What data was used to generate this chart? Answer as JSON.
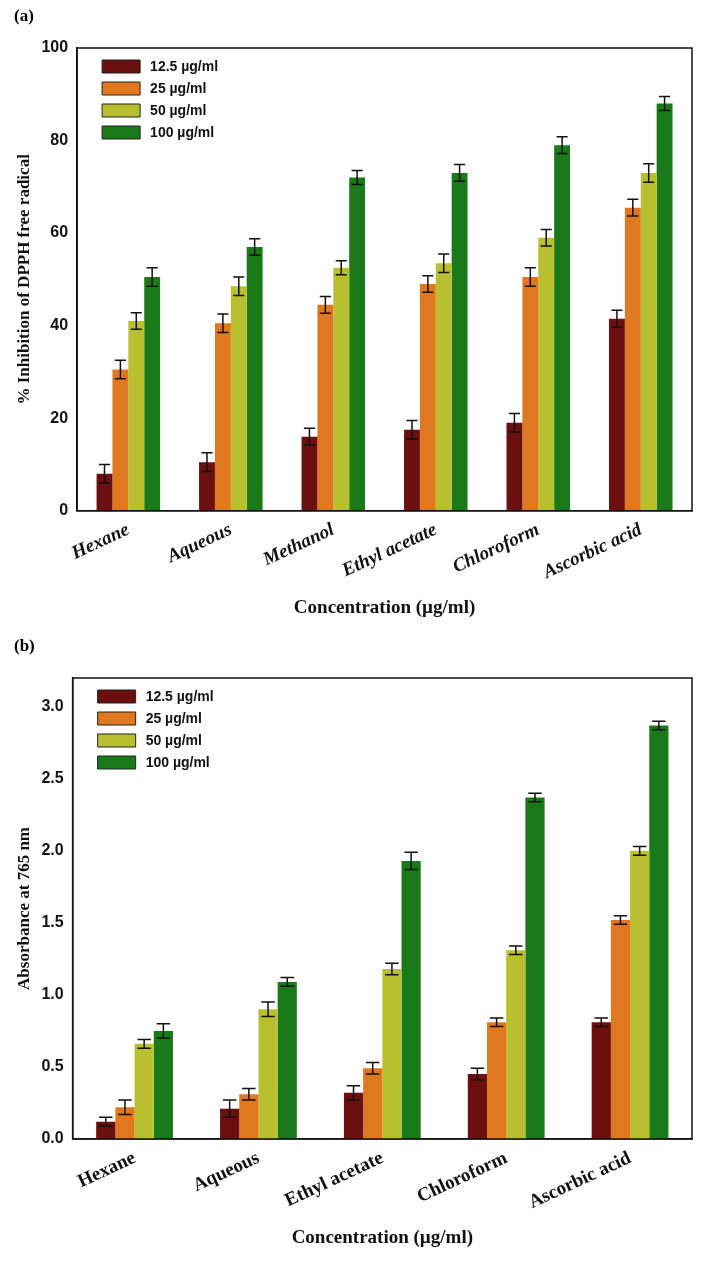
{
  "chart_data": [
    {
      "type": "bar",
      "annotations": [
        "(a)"
      ],
      "xlabel": "Concentration (µg/ml)",
      "ylabel": "% Inhibition of DPPH free radical",
      "categories": [
        "Hexane",
        "Aqueous",
        "Methanol",
        "Ethyl acetate",
        "Chloroform",
        "Ascorbic acid"
      ],
      "series": [
        {
          "name": "12.5 µg/ml",
          "color": "#6b0f0f",
          "values": [
            8,
            10.5,
            16,
            17.5,
            19,
            41.5
          ],
          "errors": [
            2,
            2,
            1.8,
            2,
            2,
            1.8
          ]
        },
        {
          "name": "25 µg/ml",
          "color": "#e07820",
          "values": [
            30.5,
            40.5,
            44.5,
            49,
            50.5,
            65.5
          ],
          "errors": [
            2,
            2,
            1.8,
            1.8,
            2,
            1.8
          ]
        },
        {
          "name": "50 µg/ml",
          "color": "#b8c030",
          "values": [
            41,
            48.5,
            52.5,
            53.5,
            59,
            73
          ],
          "errors": [
            1.8,
            2,
            1.5,
            2,
            1.8,
            2
          ]
        },
        {
          "name": "100 µg/ml",
          "color": "#1a7a1a",
          "values": [
            50.5,
            57,
            72,
            73,
            79,
            88
          ],
          "errors": [
            2,
            1.8,
            1.5,
            1.8,
            1.8,
            1.5
          ]
        }
      ],
      "ylim": [
        0,
        100
      ],
      "yticks": [
        0,
        20,
        40,
        60,
        80,
        100
      ],
      "legend": "top left",
      "grid": false
    },
    {
      "type": "bar",
      "annotations": [
        "(b)"
      ],
      "xlabel": "Concentration (µg/ml)",
      "ylabel": "Absorbance at 765 nm",
      "categories": [
        "Hexane",
        "Aqueous",
        "Ethyl acetate",
        "Chloroform",
        "Ascorbic acid"
      ],
      "series": [
        {
          "name": "12.5 µg/ml",
          "color": "#6b0f0f",
          "values": [
            0.12,
            0.21,
            0.32,
            0.45,
            0.81
          ],
          "errors": [
            0.03,
            0.06,
            0.05,
            0.04,
            0.03
          ]
        },
        {
          "name": "25 µg/ml",
          "color": "#e07820",
          "values": [
            0.22,
            0.31,
            0.49,
            0.81,
            1.52
          ],
          "errors": [
            0.05,
            0.04,
            0.04,
            0.03,
            0.03
          ]
        },
        {
          "name": "50 µg/ml",
          "color": "#b8c030",
          "values": [
            0.66,
            0.9,
            1.18,
            1.31,
            2.0
          ],
          "errors": [
            0.03,
            0.05,
            0.04,
            0.03,
            0.03
          ]
        },
        {
          "name": "100 µg/ml",
          "color": "#1a7a1a",
          "values": [
            0.75,
            1.09,
            1.93,
            2.37,
            2.87
          ],
          "errors": [
            0.05,
            0.03,
            0.06,
            0.03,
            0.03
          ]
        }
      ],
      "ylim": [
        0,
        3.2
      ],
      "yticks": [
        {
          "value": 0,
          "label": "0.0"
        },
        {
          "value": 0.5,
          "label": "0.5"
        },
        {
          "value": 1,
          "label": "1.0"
        },
        {
          "value": 1.5,
          "label": "1.5"
        },
        {
          "value": 2,
          "label": "2.0"
        },
        {
          "value": 2.5,
          "label": "2.5"
        },
        {
          "value": 3,
          "label": "3.0"
        }
      ],
      "legend": "top left",
      "grid": false
    }
  ]
}
